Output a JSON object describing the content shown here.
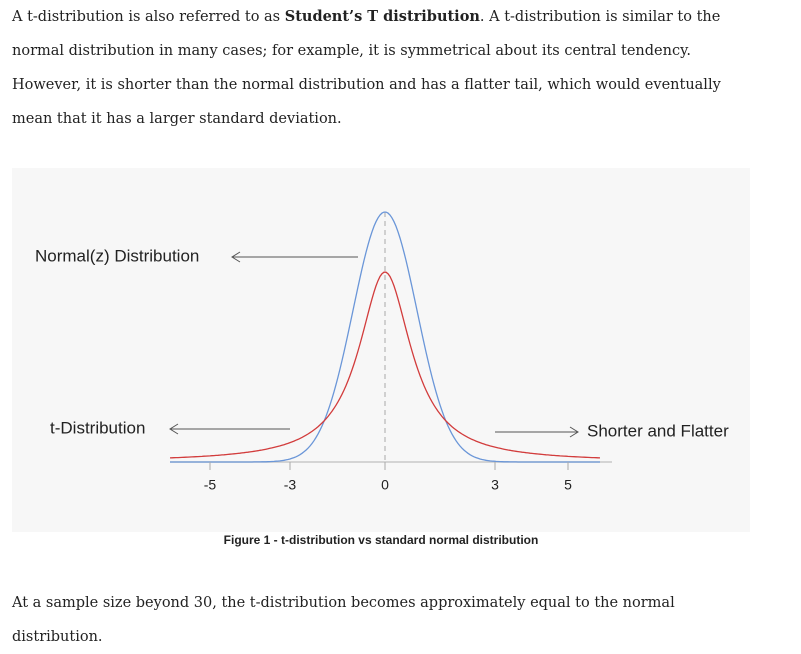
{
  "paragraphs": [
    {
      "before": "A t-distribution is also referred to as ",
      "bold": "Student’s T distribution",
      "after": ". A t-distribution is similar to the normal distribution in many cases; for example, it is symmetrical about its central tendency. However, it is shorter than the normal distribution and has a flatter tail, which would eventually mean that it has a larger standard deviation."
    },
    {
      "text": "At a sample size beyond 30, the t-distribution becomes approximately equal to the normal distribution."
    }
  ],
  "figure": {
    "labels": {
      "normal": "Normal(z) Distribution",
      "t": "t-Distribution",
      "tail": "Shorter and Flatter"
    },
    "x_tick_labels": [
      "-5",
      "-3",
      "0",
      "3",
      "5"
    ],
    "caption": "Figure 1 - t-distribution vs standard normal distribution"
  }
}
